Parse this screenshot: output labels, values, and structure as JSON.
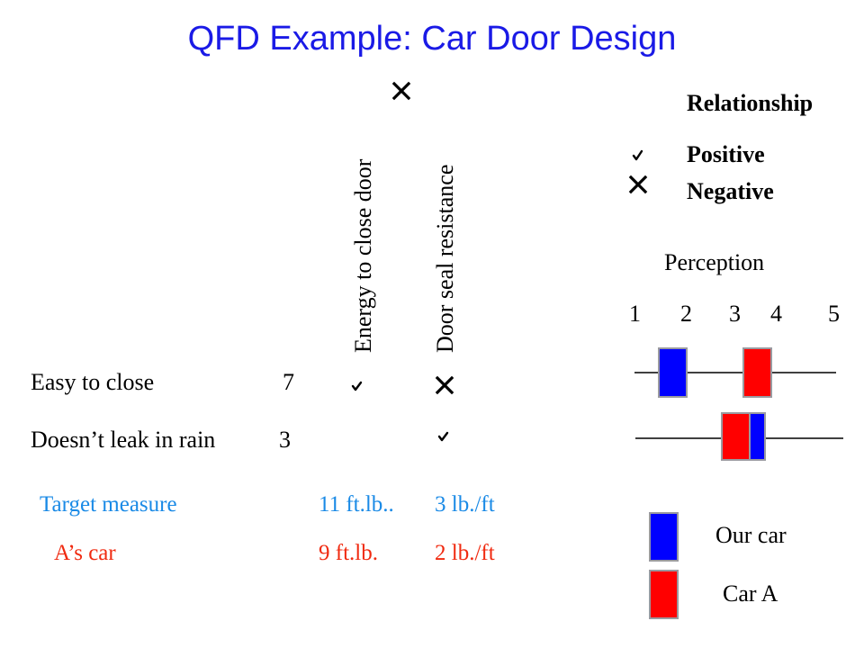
{
  "title": "QFD Example: Car Door Design",
  "columns": [
    "Energy to close door",
    "Door seal resistance"
  ],
  "rows": [
    {
      "label": "Easy to close",
      "importance": "7"
    },
    {
      "label": "Doesn’t leak in rain",
      "importance": "3"
    }
  ],
  "legend": {
    "heading": "Relationship",
    "positive": "Positive",
    "negative": "Negative"
  },
  "perception": {
    "heading": "Perception",
    "scale": [
      "1",
      "2",
      "3",
      "4",
      "5"
    ]
  },
  "target": {
    "label": "Target measure",
    "energy": "11 ft.lb..",
    "seal": "3 lb./ft"
  },
  "competitor": {
    "label": "A’s car",
    "energy": "9 ft.lb.",
    "seal": "2 lb./ft"
  },
  "car_legend": {
    "ours": "Our car",
    "competitor": "Car A"
  },
  "colors": {
    "title": "#1a1ae6",
    "target": "#1a8ae6",
    "competitor": "#f02a10",
    "our_car": "#0000ff",
    "car_a": "#ff0000"
  }
}
